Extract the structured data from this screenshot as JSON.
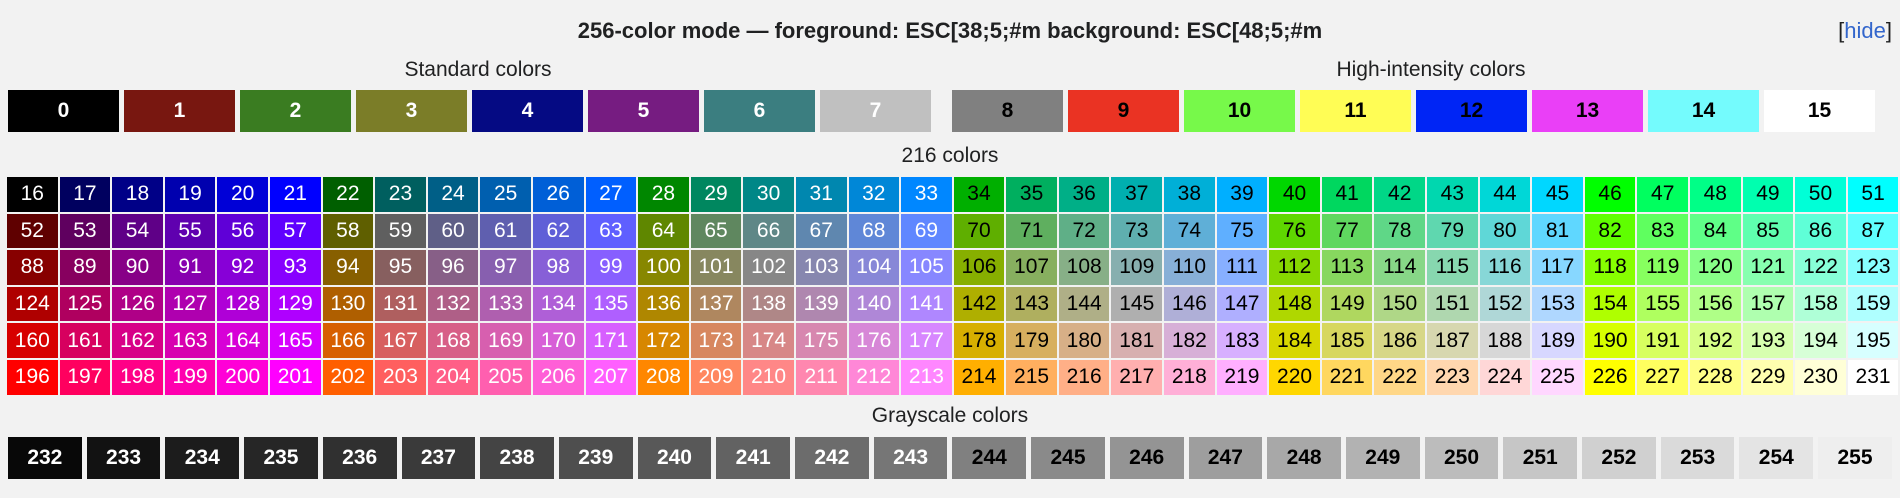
{
  "header": {
    "title": "256-color mode — foreground: ESC[38;5;#m   background: ESC[48;5;#m",
    "hide_open": "[",
    "hide_link": "hide",
    "hide_close": "]"
  },
  "sections": {
    "standard": "Standard colors",
    "high": "High-intensity colors",
    "cube": "216 colors",
    "grayscale": "Grayscale colors"
  },
  "standard_colors": [
    {
      "n": "0",
      "bg": "#000000",
      "fg": "#ffffff"
    },
    {
      "n": "1",
      "bg": "#781710",
      "fg": "#ffffff"
    },
    {
      "n": "2",
      "bg": "#3a7c21",
      "fg": "#ffffff"
    },
    {
      "n": "3",
      "bg": "#7b7d28",
      "fg": "#ffffff"
    },
    {
      "n": "4",
      "bg": "#050a83",
      "fg": "#ffffff"
    },
    {
      "n": "5",
      "bg": "#761c81",
      "fg": "#ffffff"
    },
    {
      "n": "6",
      "bg": "#3b7e80",
      "fg": "#ffffff"
    },
    {
      "n": "7",
      "bg": "#c0c0c0",
      "fg": "#ffffff"
    }
  ],
  "high_colors": [
    {
      "n": "8",
      "bg": "#808080",
      "fg": "#000000"
    },
    {
      "n": "9",
      "bg": "#ea3323",
      "fg": "#000000"
    },
    {
      "n": "10",
      "bg": "#77f94a",
      "fg": "#000000"
    },
    {
      "n": "11",
      "bg": "#fffd55",
      "fg": "#000000"
    },
    {
      "n": "12",
      "bg": "#0025f5",
      "fg": "#000000"
    },
    {
      "n": "13",
      "bg": "#ea3ff7",
      "fg": "#000000"
    },
    {
      "n": "14",
      "bg": "#74fbfd",
      "fg": "#000000"
    },
    {
      "n": "15",
      "bg": "#ffffff",
      "fg": "#000000"
    }
  ],
  "cube_levels": [
    "00",
    "5f",
    "87",
    "af",
    "d7",
    "ff"
  ],
  "grayscale_start": 232,
  "grayscale_end": 255
}
